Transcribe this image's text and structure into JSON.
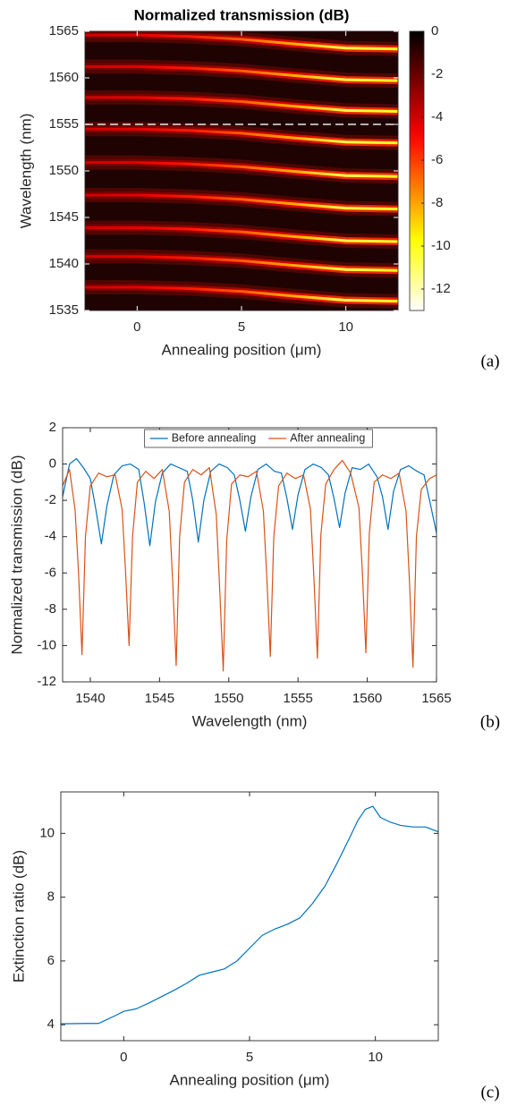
{
  "chart_data": [
    {
      "type": "heatmap",
      "title": "Normalized transmission (dB)",
      "xlabel": "Annealing position (μm)",
      "ylabel": "Wavelength (nm)",
      "panel_label": "(a)",
      "xlim": [
        -2.5,
        12.5
      ],
      "xticks": [
        0,
        5,
        10
      ],
      "ylim": [
        1535,
        1565
      ],
      "yticks": [
        1535,
        1540,
        1545,
        1550,
        1555,
        1560,
        1565
      ],
      "x": [
        -2.5,
        0,
        2.5,
        5,
        7.5,
        10,
        12.5
      ],
      "depth": [
        -4,
        -4.4,
        -5.3,
        -6.6,
        -8.2,
        -10.7,
        -10.1
      ],
      "resonances": [
        {
          "values": [
            1537.5,
            1537.5,
            1537.35,
            1537.05,
            1536.55,
            1536.1,
            1536
          ]
        },
        {
          "values": [
            1540.8,
            1540.8,
            1540.65,
            1540.35,
            1539.85,
            1539.4,
            1539.3
          ]
        },
        {
          "values": [
            1543.9,
            1543.9,
            1543.75,
            1543.45,
            1542.95,
            1542.5,
            1542.4
          ]
        },
        {
          "values": [
            1547.4,
            1547.4,
            1547.25,
            1546.95,
            1546.45,
            1546,
            1545.9
          ]
        },
        {
          "values": [
            1550.9,
            1550.9,
            1550.75,
            1550.45,
            1549.95,
            1549.5,
            1549.4
          ]
        },
        {
          "values": [
            1554.5,
            1554.5,
            1554.35,
            1554.05,
            1553.55,
            1553.1,
            1553
          ]
        },
        {
          "values": [
            1557.9,
            1557.9,
            1557.75,
            1557.45,
            1556.95,
            1556.5,
            1556.4
          ]
        },
        {
          "values": [
            1561.2,
            1561.2,
            1561.05,
            1560.75,
            1560.25,
            1559.8,
            1559.7
          ]
        },
        {
          "values": [
            1564.6,
            1564.6,
            1564.45,
            1564.15,
            1563.65,
            1563.2,
            1563.1
          ]
        }
      ],
      "clim": [
        -13,
        0
      ],
      "cticks": [
        0,
        -2,
        -4,
        -6,
        -8,
        -10,
        -12
      ],
      "colormap": "hot",
      "hline": 1555
    },
    {
      "type": "line",
      "xlabel": "Wavelength (nm)",
      "ylabel": "Normalized transmission (dB)",
      "panel_label": "(b)",
      "xlim": [
        1538,
        1565
      ],
      "xticks": [
        1540,
        1545,
        1550,
        1555,
        1560,
        1565
      ],
      "ylim": [
        -12,
        2
      ],
      "yticks": [
        -12,
        -10,
        -8,
        -6,
        -4,
        -2,
        0,
        2
      ],
      "legend": "top",
      "series": [
        {
          "name": "Before annealing",
          "color": "#0072BD",
          "x": [
            1538,
            1538.5,
            1539,
            1539.5,
            1540,
            1540.4,
            1540.8,
            1541.2,
            1541.7,
            1542.3,
            1542.9,
            1543.5,
            1543.9,
            1544.3,
            1544.7,
            1545.2,
            1545.8,
            1546.4,
            1547.0,
            1547.4,
            1547.8,
            1548.2,
            1548.7,
            1549.3,
            1549.9,
            1550.4,
            1550.8,
            1551.2,
            1551.6,
            1552.1,
            1552.7,
            1553.3,
            1553.8,
            1554.2,
            1554.6,
            1555.0,
            1555.5,
            1556.1,
            1556.7,
            1557.2,
            1557.6,
            1558.0,
            1558.4,
            1558.9,
            1559.5,
            1560.1,
            1560.7,
            1561.1,
            1561.5,
            1561.9,
            1562.4,
            1563.0,
            1563.6,
            1564.1,
            1564.5,
            1565
          ],
          "values": [
            -1.8,
            0,
            0.3,
            -0.2,
            -0.8,
            -2.5,
            -4.4,
            -2.3,
            -0.6,
            -0.1,
            0,
            -0.3,
            -2.2,
            -4.5,
            -2.1,
            -0.5,
            0,
            -0.2,
            -0.4,
            -2.0,
            -4.3,
            -2.0,
            -0.4,
            0,
            -0.2,
            -0.6,
            -2.0,
            -3.7,
            -1.8,
            -0.3,
            0,
            -0.4,
            -0.5,
            -1.9,
            -3.6,
            -1.7,
            -0.3,
            0,
            -0.2,
            -0.6,
            -1.9,
            -3.5,
            -1.6,
            -0.2,
            -0.3,
            0,
            -0.7,
            -1.8,
            -3.6,
            -1.5,
            -0.3,
            -0.1,
            -0.4,
            -0.6,
            -2.0,
            -3.8
          ]
        },
        {
          "name": "After annealing",
          "color": "#D95319",
          "x": [
            1538,
            1538.5,
            1538.9,
            1539.15,
            1539.4,
            1539.65,
            1540,
            1540.6,
            1541.2,
            1541.8,
            1542.3,
            1542.55,
            1542.8,
            1543.05,
            1543.4,
            1544.0,
            1544.6,
            1545.2,
            1545.7,
            1545.95,
            1546.2,
            1546.45,
            1546.8,
            1547.4,
            1548.0,
            1548.6,
            1549.1,
            1549.35,
            1549.6,
            1549.85,
            1550.2,
            1550.8,
            1551.4,
            1552.0,
            1552.5,
            1552.75,
            1553.0,
            1553.25,
            1553.6,
            1554.2,
            1554.8,
            1555.4,
            1555.9,
            1556.15,
            1556.4,
            1556.65,
            1557.0,
            1557.6,
            1558.2,
            1558.8,
            1559.4,
            1559.65,
            1559.9,
            1560.15,
            1560.5,
            1561.1,
            1561.7,
            1562.3,
            1562.8,
            1563.05,
            1563.3,
            1563.55,
            1563.9,
            1564.5,
            1565
          ],
          "values": [
            -1.2,
            -0.3,
            -2.5,
            -6,
            -10.5,
            -4,
            -1.2,
            -0.5,
            -0.7,
            -0.6,
            -2.5,
            -6,
            -10.0,
            -4,
            -1.0,
            -0.4,
            -0.8,
            -0.3,
            -2.6,
            -6.5,
            -11.1,
            -4,
            -1,
            -0.3,
            -0.6,
            -0.2,
            -2.8,
            -7,
            -11.4,
            -4.2,
            -1.1,
            -0.6,
            -0.7,
            -0.4,
            -2.6,
            -6.3,
            -10.6,
            -4,
            -1.2,
            -0.5,
            -0.8,
            -0.6,
            -2.5,
            -6.3,
            -10.7,
            -3.9,
            -1.1,
            -0.3,
            0.2,
            -0.5,
            -2.4,
            -6,
            -10.4,
            -3.8,
            -1.0,
            -0.6,
            -0.8,
            -0.5,
            -2.6,
            -6.5,
            -11.2,
            -4,
            -1.4,
            -0.8,
            -0.6
          ]
        }
      ]
    },
    {
      "type": "line",
      "xlabel": "Annealing position (μm)",
      "ylabel": "Extinction ratio (dB)",
      "panel_label": "(c)",
      "xlim": [
        -2.5,
        12.5
      ],
      "xticks": [
        0,
        5,
        10
      ],
      "ylim": [
        3.5,
        11.3
      ],
      "yticks": [
        4,
        6,
        8,
        10
      ],
      "color": "#0072BD",
      "x": [
        -2.5,
        -1.5,
        -1,
        -0.7,
        -0.3,
        0,
        0.5,
        1,
        1.5,
        2,
        2.5,
        3,
        3.5,
        4,
        4.5,
        5,
        5.5,
        6,
        6.5,
        7,
        7.5,
        8,
        8.5,
        9,
        9.3,
        9.6,
        9.9,
        10.2,
        10.6,
        11,
        11.5,
        12,
        12.5
      ],
      "values": [
        4.03,
        4.04,
        4.04,
        4.15,
        4.3,
        4.42,
        4.5,
        4.68,
        4.88,
        5.08,
        5.3,
        5.55,
        5.65,
        5.75,
        6.0,
        6.4,
        6.8,
        7.0,
        7.15,
        7.35,
        7.8,
        8.35,
        9.1,
        9.9,
        10.4,
        10.75,
        10.85,
        10.5,
        10.35,
        10.25,
        10.2,
        10.2,
        10.05
      ]
    }
  ]
}
